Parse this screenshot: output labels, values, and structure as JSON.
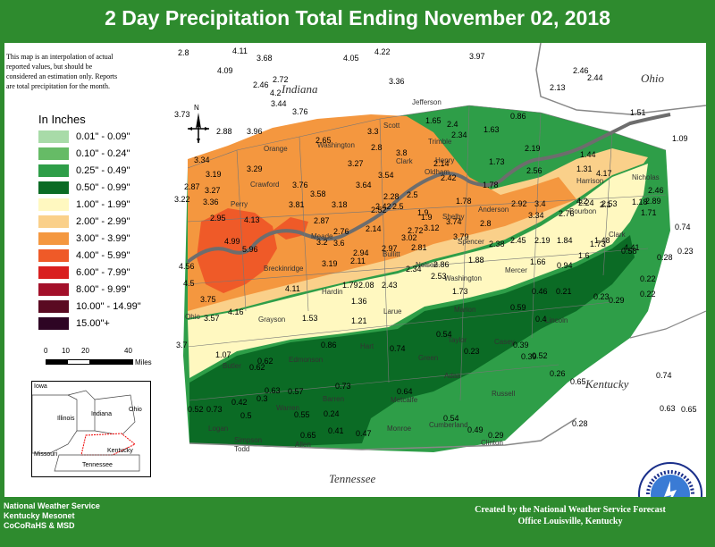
{
  "title": "2 Day Precipitation Total Ending November 02, 2018",
  "note": "This map is an interpolation of actual reported values, but should be considered an estimation only. Reports are total precipitation for the month.",
  "legend": {
    "title": "In Inches",
    "items": [
      {
        "label": "0.01\" - 0.09\"",
        "color": "#a8dba8"
      },
      {
        "label": "0.10\" - 0.24\"",
        "color": "#66bb66"
      },
      {
        "label": "0.25\" - 0.49\"",
        "color": "#2e9e48"
      },
      {
        "label": "0.50\" - 0.99\"",
        "color": "#0b6b25"
      },
      {
        "label": "1.00\" - 1.99\"",
        "color": "#fff8c0"
      },
      {
        "label": "2.00\" - 2.99\"",
        "color": "#fad08a"
      },
      {
        "label": "3.00\" - 3.99\"",
        "color": "#f4973f"
      },
      {
        "label": "4.00\" - 5.99\"",
        "color": "#ef5a28"
      },
      {
        "label": "6.00\" - 7.99\"",
        "color": "#d91f1f"
      },
      {
        "label": "8.00\" - 9.99\"",
        "color": "#a3102a"
      },
      {
        "label": "10.00\" - 14.99\"",
        "color": "#5a0a22"
      },
      {
        "label": "15.00\"+",
        "color": "#2e0524"
      }
    ]
  },
  "scale": {
    "ticks": [
      "0",
      "10",
      "20",
      "40"
    ],
    "unit": "Miles"
  },
  "compass_label": "N",
  "state_labels": {
    "indiana": "Indiana",
    "ohio": "Ohio",
    "kentucky": "Kentucky",
    "tennessee": "Tennessee"
  },
  "inset_labels": {
    "iowa": "Iowa",
    "illinois": "Illinois",
    "indiana": "Indiana",
    "ohio": "Ohio",
    "missouri": "Missouri",
    "kentucky": "Kentucky",
    "tennessee": "Tennessee"
  },
  "counties": [
    "Jefferson",
    "Scott",
    "Trimble",
    "Washington",
    "Clark",
    "Henry",
    "Orange",
    "Oldham",
    "Harrison",
    "Crawford",
    "Nicholas",
    "Bourbon",
    "Clark",
    "Perry",
    "Meade",
    "Bullitt",
    "Shelby",
    "Spencer",
    "Anderson",
    "Breckinridge",
    "Nelson",
    "Mercer",
    "Washington",
    "Hardin",
    "Ohio",
    "Larue",
    "Marion",
    "Grayson",
    "Hart",
    "Butler",
    "Edmonson",
    "Green",
    "Taylor",
    "Lincoln",
    "Casey",
    "Adair",
    "Russell",
    "Barren",
    "Metcalfe",
    "Monroe",
    "Cumberland",
    "Clinton",
    "Allen",
    "Warren",
    "Simpson",
    "Logan",
    "Todd"
  ],
  "values": [
    "2.8",
    "4.11",
    "3.68",
    "4.05",
    "4.22",
    "3.97",
    "2.46",
    "4.09",
    "2.72",
    "4.2",
    "2.46",
    "3.36",
    "2.44",
    "2.13",
    "3.44",
    "3.76",
    "3.73",
    "2.88",
    "3.96",
    "3.3",
    "2.8",
    "1.65",
    "2.4",
    "0.86",
    "1.51",
    "1.09",
    "2.65",
    "2.34",
    "1.63",
    "3.8",
    "3.27",
    "2.14",
    "1.73",
    "2.19",
    "2.56",
    "1.44",
    "3.34",
    "3.19",
    "3.29",
    "3.54",
    "2.42",
    "1.78",
    "1.31",
    "4.17",
    "2.87",
    "3.27",
    "3.76",
    "3.58",
    "3.64",
    "2.28",
    "2.5",
    "3.22",
    "3.36",
    "2.42",
    "1.9",
    "1.78",
    "2.92",
    "3.4",
    "4.2",
    "2.53",
    "2.46",
    "2.89",
    "1.71",
    "2.95",
    "3.81",
    "3.18",
    "2.52",
    "2.5",
    "1.9",
    "3.34",
    "2.76",
    "2.24",
    "2.1",
    "1.18",
    "4.13",
    "2.87",
    "2.76",
    "2.14",
    "2.72",
    "3.12",
    "3.74",
    "2.8",
    "1.73",
    "0.74",
    "4.99",
    "5.96",
    "3.2",
    "3.6",
    "2.94",
    "3.02",
    "3.79",
    "2.38",
    "2.45",
    "2.19",
    "1.84",
    "1.48",
    "4.41",
    "0.58",
    "0.28",
    "0.23",
    "2.97",
    "2.81",
    "1.88",
    "1.6",
    "2.11",
    "2.34",
    "2.86",
    "1.66",
    "0.94",
    "4.56",
    "3.19",
    "4.11",
    "2.53",
    "0.22",
    "4.5",
    "1.79",
    "2.08",
    "2.43",
    "1.73",
    "0.46",
    "0.21",
    "0.23",
    "0.22",
    "3.75",
    "1.36",
    "0.29",
    "3.57",
    "4.16",
    "1.53",
    "1.21",
    "0.59",
    "0.4",
    "0.54",
    "0.39",
    "0.52",
    "3.7",
    "0.86",
    "0.74",
    "0.62",
    "0.23",
    "1.07",
    "0.62",
    "0.39",
    "0.26",
    "0.65",
    "0.74",
    "0.63",
    "0.57",
    "0.73",
    "0.64",
    "0.42",
    "0.3",
    "0.63",
    "0.65",
    "0.52",
    "0.73",
    "0.5",
    "0.55",
    "0.24",
    "0.28",
    "0.54",
    "0.49",
    "0.65",
    "0.41",
    "0.47",
    "0.29"
  ],
  "credits_left": [
    "National Weather Service",
    "Kentucky Mesonet",
    "CoCoRaHS & MSD"
  ],
  "credits_right": [
    "Created by the National Weather Service Forecast",
    "Office Louisville, Kentucky"
  ]
}
